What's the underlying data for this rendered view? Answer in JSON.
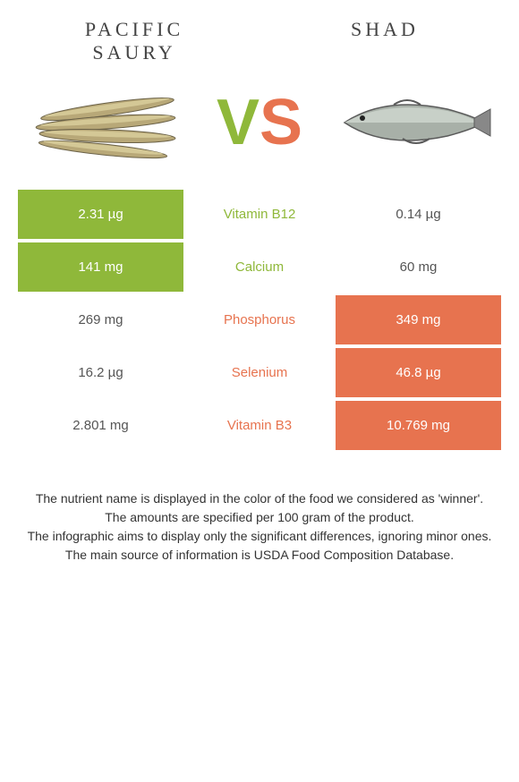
{
  "header": {
    "left": "Pacific saury",
    "right": "Shad"
  },
  "vs": {
    "v": "V",
    "s": "S"
  },
  "colors": {
    "green": "#8fb83a",
    "orange": "#e7734f",
    "white": "#ffffff",
    "text": "#333333"
  },
  "table": {
    "type": "comparison-table",
    "rows": [
      {
        "left": "2.31 µg",
        "left_bg": "#8fb83a",
        "mid": "Vitamin B12",
        "mid_color": "#8fb83a",
        "right": "0.14 µg",
        "right_bg": "#ffffff",
        "right_txt": "#555555"
      },
      {
        "left": "141 mg",
        "left_bg": "#8fb83a",
        "mid": "Calcium",
        "mid_color": "#8fb83a",
        "right": "60 mg",
        "right_bg": "#ffffff",
        "right_txt": "#555555"
      },
      {
        "left": "269 mg",
        "left_bg": "#ffffff",
        "left_txt": "#555555",
        "mid": "Phosphorus",
        "mid_color": "#e7734f",
        "right": "349 mg",
        "right_bg": "#e7734f"
      },
      {
        "left": "16.2 µg",
        "left_bg": "#ffffff",
        "left_txt": "#555555",
        "mid": "Selenium",
        "mid_color": "#e7734f",
        "right": "46.8 µg",
        "right_bg": "#e7734f"
      },
      {
        "left": "2.801 mg",
        "left_bg": "#ffffff",
        "left_txt": "#555555",
        "mid": "Vitamin B3",
        "mid_color": "#e7734f",
        "right": "10.769 mg",
        "right_bg": "#e7734f"
      }
    ]
  },
  "footer": {
    "line1": "The nutrient name is displayed in the color of the food we considered as 'winner'.",
    "line2": "The amounts are specified per 100 gram of the product.",
    "line3": "The infographic aims to display only the significant differences, ignoring minor ones.",
    "line4": "The main source of information is USDA Food Composition Database."
  }
}
